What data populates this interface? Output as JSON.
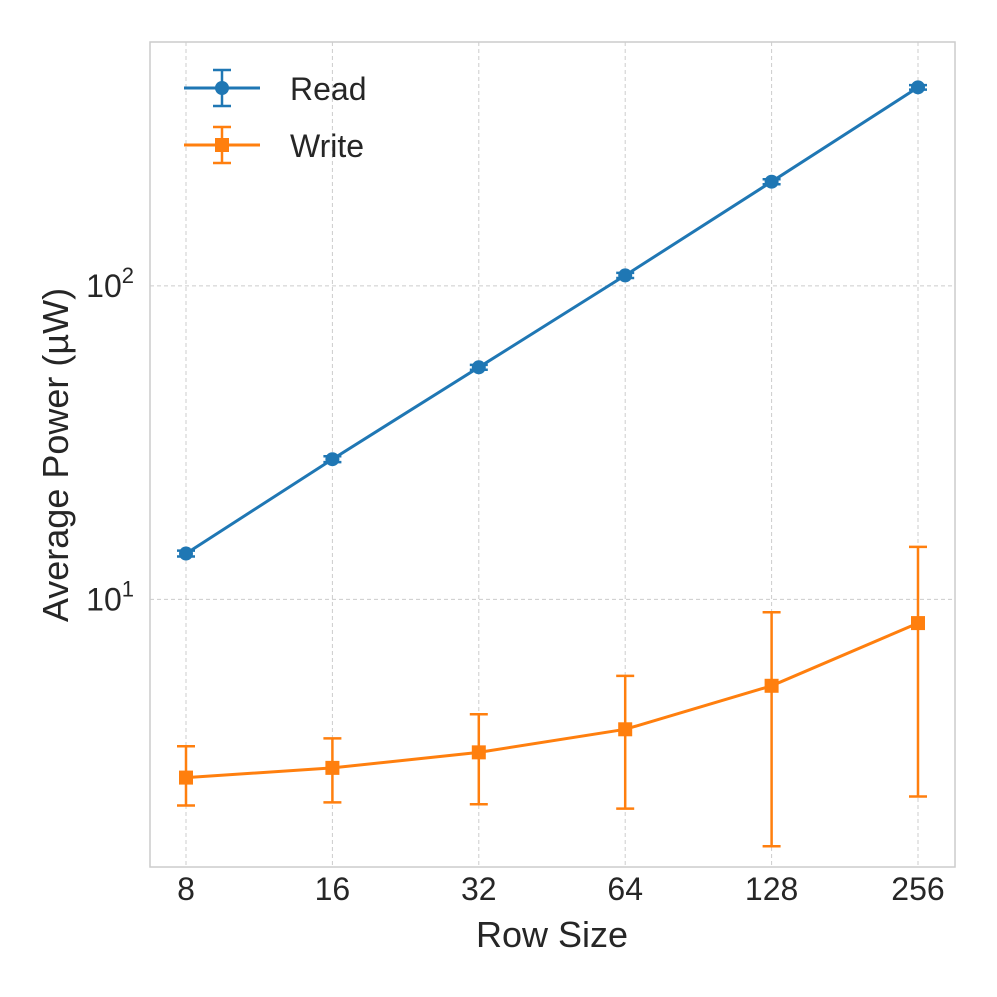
{
  "chart_data": {
    "type": "line",
    "title": "",
    "xlabel": "Row Size",
    "ylabel": "Average Power (µW)",
    "xscale": "log2",
    "yscale": "log10",
    "x": [
      8,
      16,
      32,
      64,
      128,
      256
    ],
    "x_tick_labels": [
      "8",
      "16",
      "32",
      "64",
      "128",
      "256"
    ],
    "y_ticks": [
      {
        "value": 10,
        "base": "10",
        "exp": "1"
      },
      {
        "value": 100,
        "base": "10",
        "exp": "2"
      }
    ],
    "ylim": [
      1.4,
      600
    ],
    "grid": true,
    "legend_position": "top-left",
    "series": [
      {
        "name": "Read",
        "marker": "circle",
        "color": "#1f77b4",
        "values": [
          14,
          28,
          55,
          108,
          215,
          430
        ],
        "err_low": [
          13.7,
          27.4,
          54,
          106,
          211,
          423
        ],
        "err_high": [
          14.3,
          28.6,
          56,
          110,
          219,
          437
        ]
      },
      {
        "name": "Write",
        "marker": "square",
        "color": "#ff7f0e",
        "values": [
          2.7,
          2.9,
          3.25,
          3.85,
          5.3,
          8.4
        ],
        "err_low": [
          2.2,
          2.25,
          2.22,
          2.15,
          1.63,
          2.35
        ],
        "err_high": [
          3.4,
          3.6,
          4.3,
          5.7,
          9.1,
          14.7
        ]
      }
    ]
  }
}
